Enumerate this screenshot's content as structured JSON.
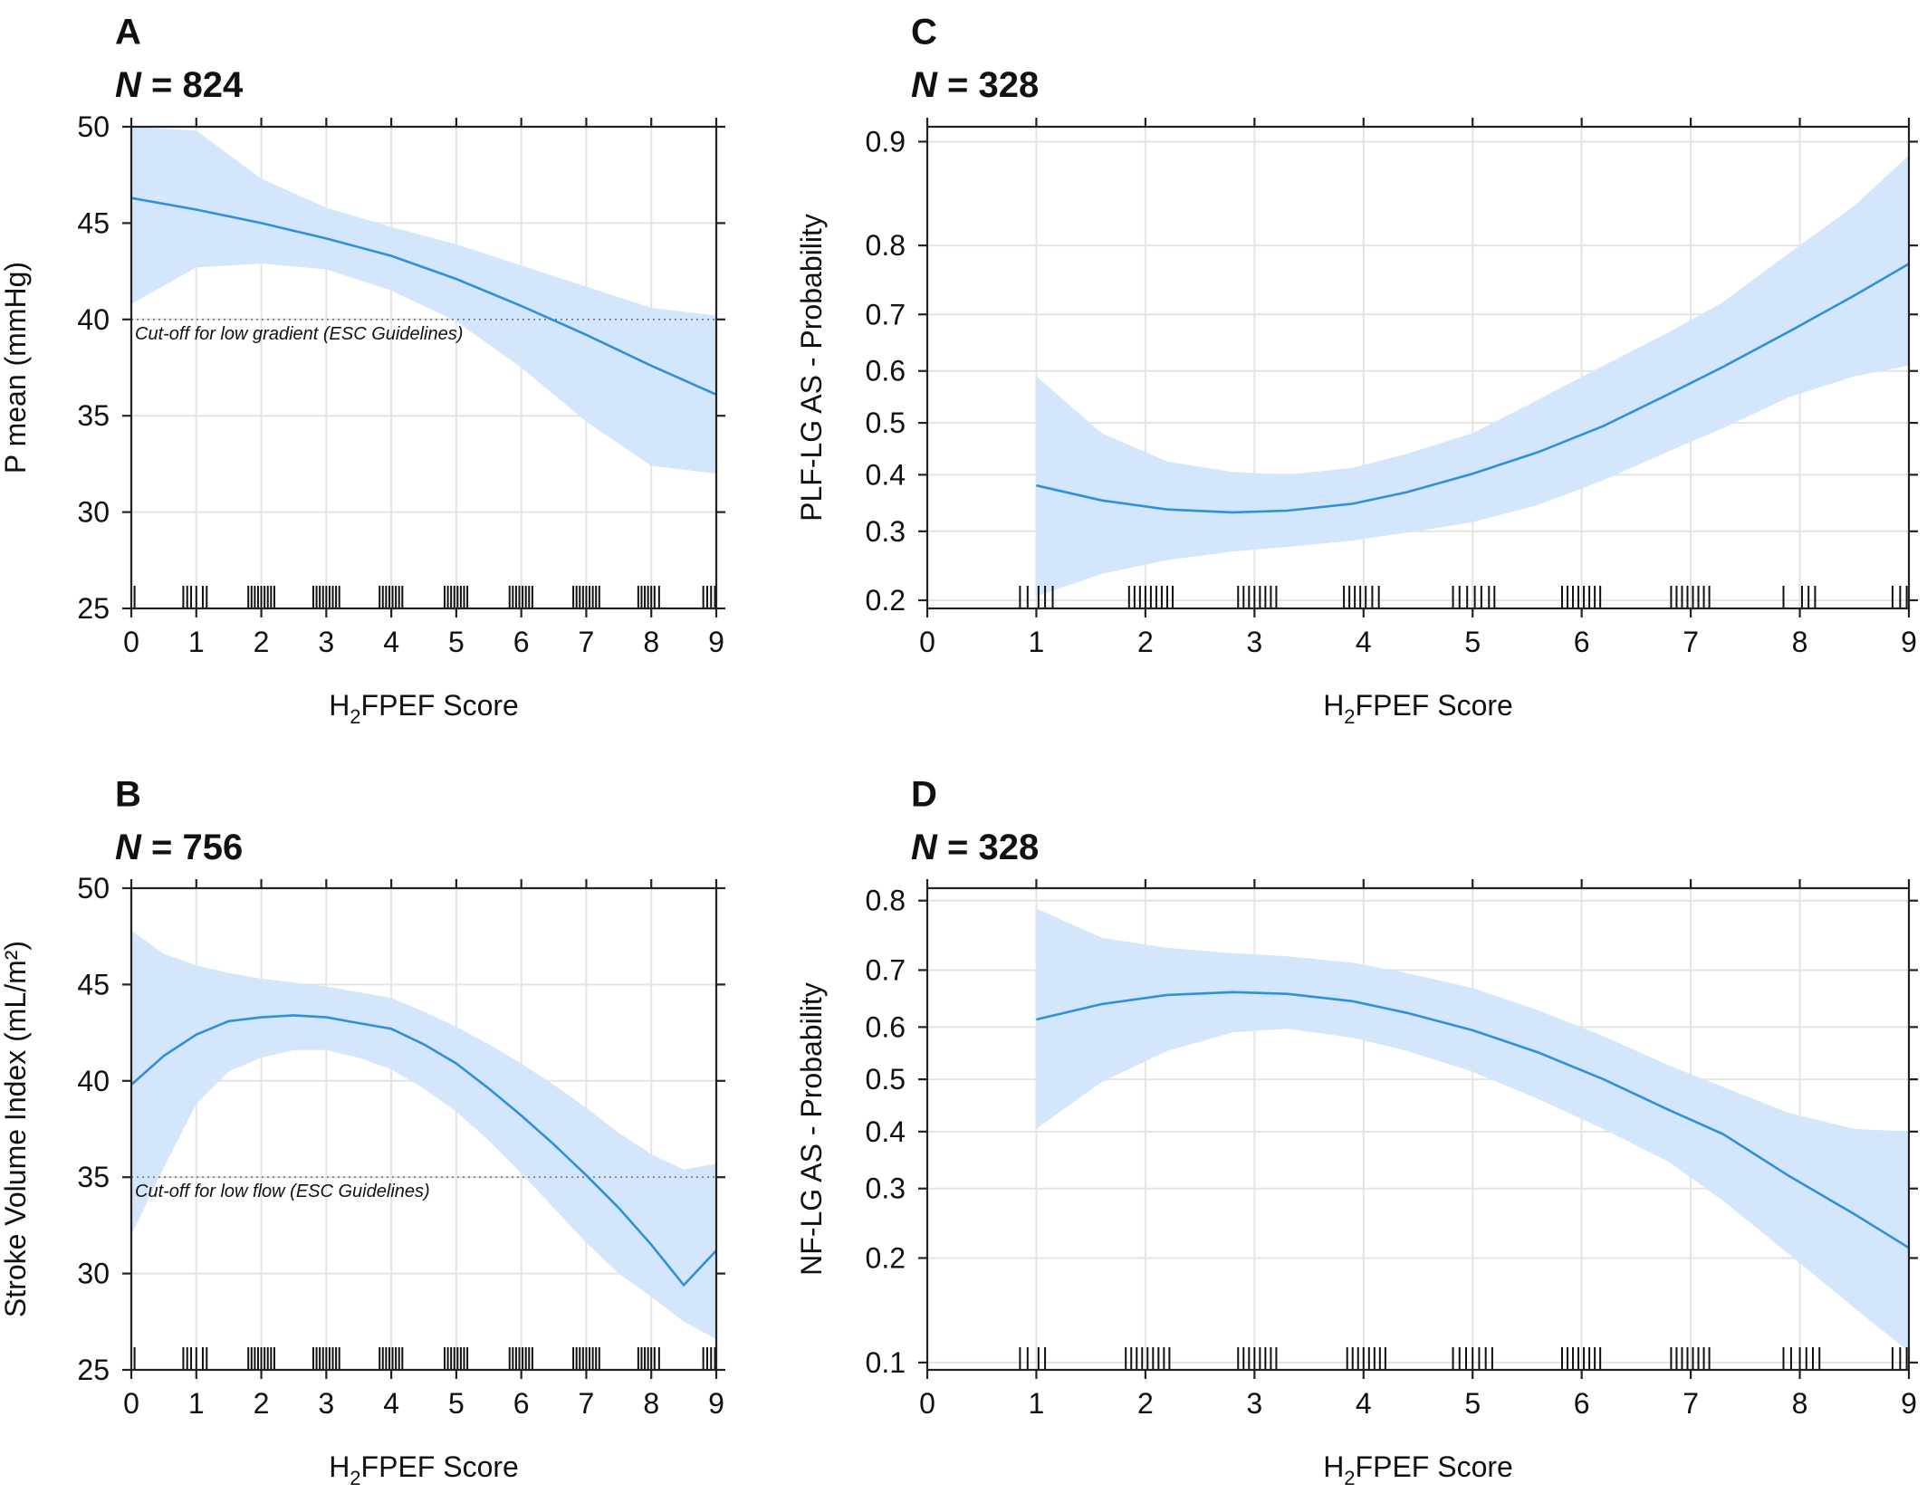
{
  "chart_data": [
    {
      "panel": "A",
      "n_label": {
        "symbol": "N",
        "rest": " = 824"
      },
      "type": "line",
      "xlabel": {
        "base": "H",
        "sub": "2",
        "rest": "FPEF Score"
      },
      "ylabel": "P mean (mmHg)",
      "xlim": [
        0,
        9
      ],
      "ylim": [
        25,
        50
      ],
      "y_scale": "linear",
      "x_ticks": [
        0,
        1,
        2,
        3,
        4,
        5,
        6,
        7,
        8,
        9
      ],
      "y_ticks": [
        25,
        30,
        35,
        40,
        45,
        50
      ],
      "grid": true,
      "fit": {
        "x": [
          0,
          1,
          2,
          3,
          4,
          5,
          6,
          7,
          8,
          9
        ],
        "y": [
          46.3,
          45.7,
          45.0,
          44.2,
          43.3,
          42.1,
          40.7,
          39.2,
          37.6,
          36.1
        ],
        "lower": [
          40.8,
          42.7,
          42.9,
          42.6,
          41.5,
          39.9,
          37.5,
          34.7,
          32.4,
          32.0
        ],
        "upper": [
          50.0,
          49.8,
          47.3,
          45.8,
          44.8,
          43.9,
          42.8,
          41.7,
          40.6,
          40.2
        ]
      },
      "cutoff": {
        "y": 40,
        "label": "Cut-off for low gradient (ESC Guidelines)"
      },
      "rug_x": [
        0.05,
        0.8,
        0.86,
        0.92,
        1.0,
        1.1,
        1.16,
        1.8,
        1.85,
        1.9,
        1.95,
        2.0,
        2.05,
        2.1,
        2.15,
        2.2,
        2.8,
        2.85,
        2.9,
        2.95,
        3.0,
        3.05,
        3.1,
        3.15,
        3.2,
        3.82,
        3.87,
        3.92,
        3.97,
        4.02,
        4.07,
        4.12,
        4.17,
        4.82,
        4.87,
        4.92,
        4.97,
        5.02,
        5.07,
        5.12,
        5.17,
        5.82,
        5.87,
        5.92,
        5.97,
        6.02,
        6.07,
        6.12,
        6.17,
        6.8,
        6.85,
        6.9,
        6.95,
        7.0,
        7.05,
        7.1,
        7.15,
        7.2,
        7.8,
        7.85,
        7.9,
        7.95,
        8.0,
        8.05,
        8.12,
        8.8,
        8.86,
        8.92,
        8.98
      ]
    },
    {
      "panel": "B",
      "n_label": {
        "symbol": "N",
        "rest": " = 756"
      },
      "type": "line",
      "xlabel": {
        "base": "H",
        "sub": "2",
        "rest": "FPEF Score"
      },
      "ylabel": "Stroke Volume Index (mL/m²)",
      "xlim": [
        0,
        9
      ],
      "ylim": [
        25,
        50
      ],
      "y_scale": "linear",
      "x_ticks": [
        0,
        1,
        2,
        3,
        4,
        5,
        6,
        7,
        8,
        9
      ],
      "y_ticks": [
        25,
        30,
        35,
        40,
        45,
        50
      ],
      "grid": true,
      "fit": {
        "x": [
          0,
          0.5,
          1,
          1.5,
          2,
          2.5,
          3,
          3.5,
          4,
          4.5,
          5,
          5.5,
          6,
          6.5,
          7,
          7.5,
          8,
          8.5,
          9
        ],
        "y": [
          39.8,
          41.3,
          42.4,
          43.1,
          43.3,
          43.4,
          43.3,
          43.0,
          42.7,
          41.9,
          40.9,
          39.6,
          38.2,
          36.7,
          35.1,
          33.4,
          31.5,
          29.4,
          31.2
        ],
        "lower": [
          32.0,
          35.5,
          38.8,
          40.5,
          41.2,
          41.6,
          41.6,
          41.2,
          40.6,
          39.6,
          38.4,
          36.9,
          35.2,
          33.4,
          31.6,
          30.0,
          28.8,
          27.5,
          26.6
        ],
        "upper": [
          47.8,
          46.6,
          46.0,
          45.6,
          45.3,
          45.1,
          44.9,
          44.6,
          44.3,
          43.6,
          42.8,
          41.9,
          40.9,
          39.8,
          38.6,
          37.3,
          36.2,
          35.4,
          35.7
        ]
      },
      "cutoff": {
        "y": 35,
        "label": "Cut-off for low flow (ESC Guidelines)"
      },
      "rug_x": [
        0.05,
        0.8,
        0.86,
        0.92,
        1.0,
        1.1,
        1.16,
        1.8,
        1.85,
        1.9,
        1.95,
        2.0,
        2.05,
        2.1,
        2.15,
        2.2,
        2.8,
        2.85,
        2.9,
        2.95,
        3.0,
        3.05,
        3.1,
        3.15,
        3.2,
        3.82,
        3.87,
        3.92,
        3.97,
        4.02,
        4.07,
        4.12,
        4.17,
        4.82,
        4.87,
        4.92,
        4.97,
        5.02,
        5.07,
        5.12,
        5.17,
        5.82,
        5.87,
        5.92,
        5.97,
        6.02,
        6.07,
        6.12,
        6.17,
        6.8,
        6.85,
        6.9,
        6.95,
        7.0,
        7.05,
        7.1,
        7.15,
        7.2,
        7.8,
        7.85,
        7.9,
        7.95,
        8.0,
        8.05,
        8.12,
        8.8,
        8.86,
        8.92,
        8.98
      ]
    },
    {
      "panel": "C",
      "n_label": {
        "symbol": "N",
        "rest": " = 328"
      },
      "type": "line",
      "xlabel": {
        "base": "H",
        "sub": "2",
        "rest": "FPEF Score"
      },
      "ylabel": "PLF-LG AS - Probability",
      "xlim": [
        0,
        9
      ],
      "ylim": [
        0.19,
        0.91
      ],
      "y_scale": "logit",
      "x_ticks": [
        0,
        1,
        2,
        3,
        4,
        5,
        6,
        7,
        8,
        9
      ],
      "y_ticks": [
        0.2,
        0.3,
        0.4,
        0.5,
        0.6,
        0.7,
        0.8,
        0.9
      ],
      "grid": true,
      "fit": {
        "x": [
          1,
          1.6,
          2.2,
          2.8,
          3.3,
          3.9,
          4.4,
          5,
          5.6,
          6.2,
          6.8,
          7.3,
          7.9,
          8.5,
          9
        ],
        "y": [
          0.38,
          0.353,
          0.337,
          0.332,
          0.335,
          0.347,
          0.368,
          0.402,
          0.443,
          0.494,
          0.556,
          0.608,
          0.671,
          0.73,
          0.776
        ],
        "lower": [
          0.205,
          0.235,
          0.255,
          0.268,
          0.275,
          0.285,
          0.298,
          0.315,
          0.345,
          0.39,
          0.445,
          0.49,
          0.55,
          0.59,
          0.61
        ],
        "upper": [
          0.59,
          0.48,
          0.425,
          0.405,
          0.4,
          0.413,
          0.44,
          0.48,
          0.545,
          0.61,
          0.67,
          0.72,
          0.79,
          0.845,
          0.89
        ]
      },
      "rug_x": [
        0.85,
        0.92,
        1.02,
        1.08,
        1.15,
        1.85,
        1.9,
        1.95,
        2.0,
        2.05,
        2.1,
        2.15,
        2.2,
        2.25,
        2.85,
        2.9,
        2.95,
        3.0,
        3.05,
        3.1,
        3.15,
        3.2,
        3.82,
        3.87,
        3.92,
        3.97,
        4.02,
        4.08,
        4.14,
        4.82,
        4.88,
        4.95,
        5.02,
        5.08,
        5.15,
        5.2,
        5.82,
        5.87,
        5.92,
        5.97,
        6.02,
        6.07,
        6.12,
        6.17,
        6.82,
        6.87,
        6.92,
        6.97,
        7.02,
        7.07,
        7.12,
        7.17,
        7.85,
        8.02,
        8.08,
        8.14,
        8.85,
        8.92,
        8.98
      ]
    },
    {
      "panel": "D",
      "n_label": {
        "symbol": "N",
        "rest": " = 328"
      },
      "type": "line",
      "xlabel": {
        "base": "H",
        "sub": "2",
        "rest": "FPEF Score"
      },
      "ylabel": "NF-LG AS - Probability",
      "xlim": [
        0,
        9
      ],
      "ylim": [
        0.095,
        0.815
      ],
      "y_scale": "logit",
      "x_ticks": [
        0,
        1,
        2,
        3,
        4,
        5,
        6,
        7,
        8,
        9
      ],
      "y_ticks": [
        0.1,
        0.2,
        0.3,
        0.4,
        0.5,
        0.6,
        0.7,
        0.8
      ],
      "grid": true,
      "fit": {
        "x": [
          1,
          1.6,
          2.2,
          2.8,
          3.3,
          3.9,
          4.4,
          5,
          5.6,
          6.2,
          6.8,
          7.3,
          7.9,
          8.5,
          9
        ],
        "y": [
          0.614,
          0.642,
          0.658,
          0.663,
          0.66,
          0.647,
          0.626,
          0.594,
          0.552,
          0.5,
          0.441,
          0.395,
          0.321,
          0.26,
          0.213
        ],
        "lower": [
          0.405,
          0.495,
          0.555,
          0.59,
          0.597,
          0.58,
          0.555,
          0.515,
          0.462,
          0.405,
          0.345,
          0.28,
          0.205,
          0.145,
          0.108
        ],
        "upper": [
          0.79,
          0.75,
          0.735,
          0.727,
          0.722,
          0.712,
          0.695,
          0.67,
          0.631,
          0.583,
          0.527,
          0.485,
          0.435,
          0.405,
          0.4
        ]
      },
      "rug_x": [
        0.85,
        0.92,
        1.02,
        1.08,
        1.82,
        1.87,
        1.92,
        1.97,
        2.02,
        2.07,
        2.12,
        2.17,
        2.22,
        2.85,
        2.9,
        2.95,
        3.0,
        3.05,
        3.1,
        3.15,
        3.2,
        3.85,
        3.9,
        3.95,
        4.0,
        4.05,
        4.1,
        4.15,
        4.2,
        4.82,
        4.88,
        4.94,
        5.0,
        5.06,
        5.12,
        5.18,
        5.82,
        5.87,
        5.92,
        5.97,
        6.02,
        6.07,
        6.12,
        6.17,
        6.82,
        6.87,
        6.92,
        6.97,
        7.02,
        7.07,
        7.12,
        7.17,
        7.85,
        7.92,
        8.0,
        8.06,
        8.12,
        8.18,
        8.85,
        8.92,
        8.98
      ]
    }
  ]
}
